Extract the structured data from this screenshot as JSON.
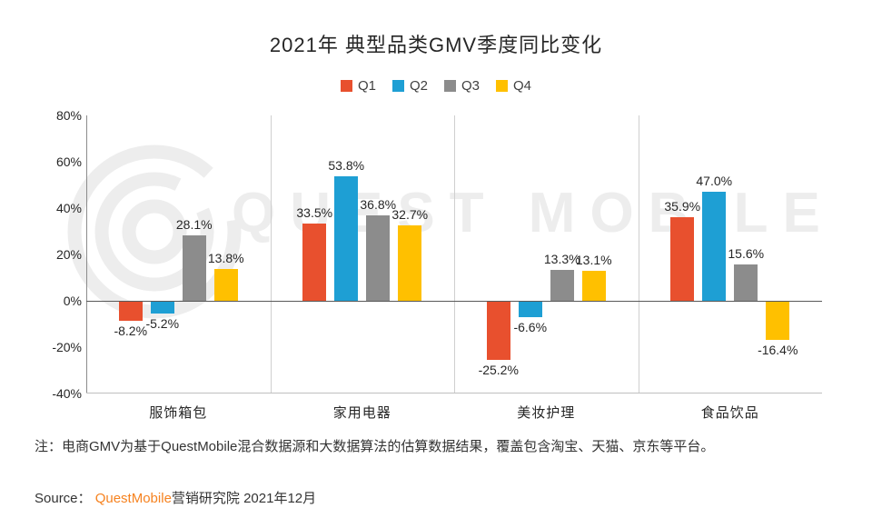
{
  "title": "2021年 典型品类GMV季度同比变化",
  "watermark": {
    "text": "QUEST MOBILE"
  },
  "chart_data": {
    "type": "bar",
    "title": "2021年 典型品类GMV季度同比变化",
    "categories": [
      "服饰箱包",
      "家用电器",
      "美妆护理",
      "食品饮品"
    ],
    "series": [
      {
        "name": "Q1",
        "color": "#e8502e",
        "values": [
          -8.2,
          33.5,
          -25.2,
          35.9
        ]
      },
      {
        "name": "Q2",
        "color": "#1e9fd4",
        "values": [
          -5.2,
          53.8,
          -6.6,
          47.0
        ]
      },
      {
        "name": "Q3",
        "color": "#8c8c8c",
        "values": [
          28.1,
          36.8,
          13.3,
          15.6
        ]
      },
      {
        "name": "Q4",
        "color": "#ffc000",
        "values": [
          13.8,
          32.7,
          13.1,
          -16.4
        ]
      }
    ],
    "ylim": [
      -40,
      80
    ],
    "ytick_step": 20,
    "ytick_labels": [
      "80%",
      "60%",
      "40%",
      "20%",
      "0%",
      "-20%",
      "-40%"
    ],
    "grid": "category-separators-only",
    "legend_position": "top",
    "label_format": "one_decimal_percent"
  },
  "note": "注：电商GMV为基于QuestMobile混合数据源和大数据算法的估算数据结果，覆盖包含淘宝、天猫、京东等平台。",
  "source": {
    "prefix": "Source：",
    "brand": "QuestMobile",
    "suffix": "营销研究院 2021年12月",
    "brand_color": "#f6821f"
  }
}
